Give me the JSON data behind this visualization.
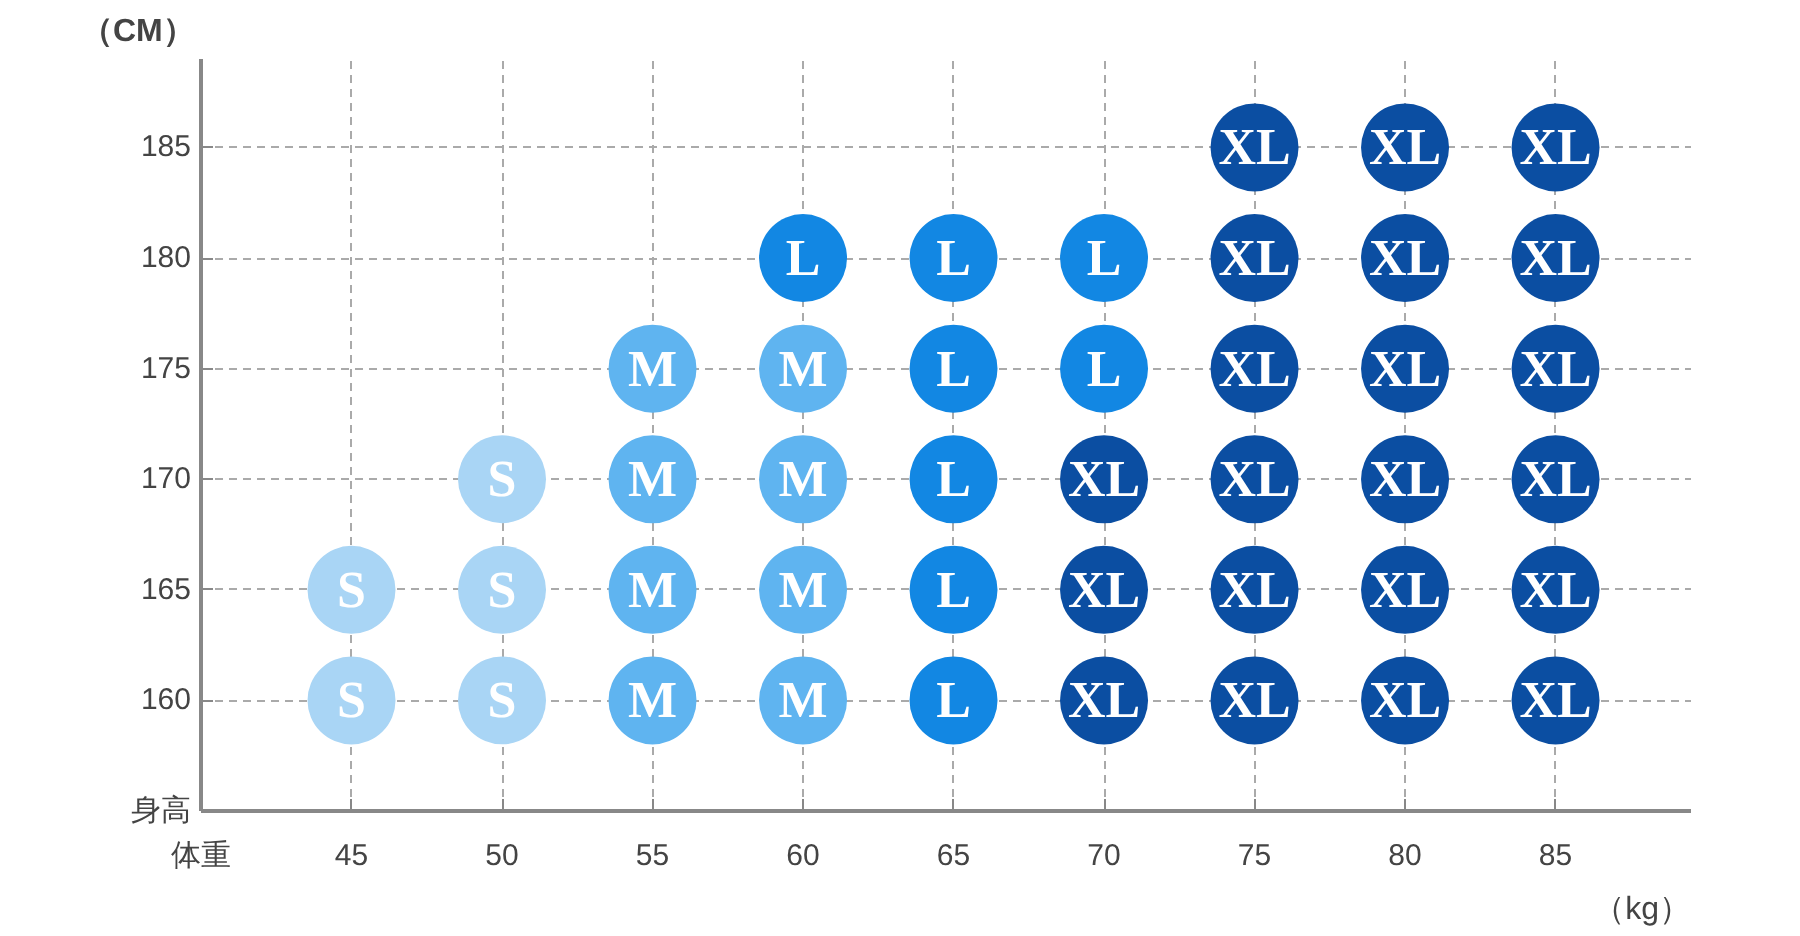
{
  "chart_data": {
    "type": "scatter",
    "xlabel": "（kg）",
    "ylabel": "（CM）",
    "xlim": [
      40,
      89.5
    ],
    "ylim": [
      155,
      189
    ],
    "xticks": [
      {
        "value": 40,
        "label": "体重"
      },
      45,
      50,
      55,
      60,
      65,
      70,
      75,
      80,
      85
    ],
    "yticks": [
      {
        "value": 155,
        "label": "身高"
      },
      160,
      165,
      170,
      175,
      180,
      185
    ],
    "grid": true,
    "marker": "circle",
    "series": [
      {
        "name": "S",
        "color": "#a9d5f5",
        "x": [
          45,
          45,
          50,
          50,
          50
        ],
        "values": [
          165,
          160,
          170,
          165,
          160
        ]
      },
      {
        "name": "M",
        "color": "#5fb4f0",
        "x": [
          55,
          55,
          55,
          55,
          60,
          60,
          60,
          60
        ],
        "values": [
          175,
          170,
          165,
          160,
          175,
          170,
          165,
          160
        ]
      },
      {
        "name": "L",
        "color": "#1287e3",
        "x": [
          60,
          65,
          70,
          65,
          70,
          65,
          65,
          65
        ],
        "values": [
          180,
          180,
          180,
          175,
          175,
          170,
          165,
          160
        ]
      },
      {
        "name": "XL",
        "color": "#0b4ea2",
        "x": [
          70,
          70,
          70,
          75,
          75,
          75,
          75,
          75,
          75,
          80,
          80,
          80,
          80,
          80,
          80,
          85,
          85,
          85,
          85,
          85,
          85
        ],
        "values": [
          170,
          165,
          160,
          185,
          180,
          175,
          170,
          165,
          160,
          185,
          180,
          175,
          170,
          165,
          160,
          185,
          180,
          175,
          170,
          165,
          160
        ]
      }
    ]
  }
}
